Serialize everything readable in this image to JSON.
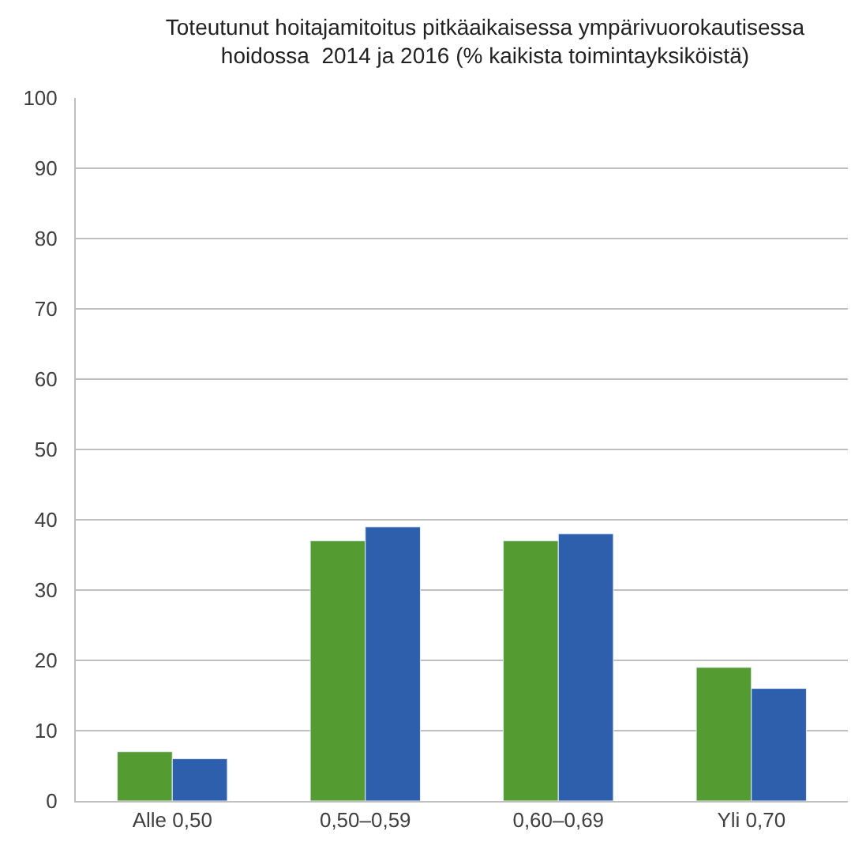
{
  "chart_data": {
    "type": "bar",
    "title": "Toteutunut hoitajamitoitus pitkäaikaisessa ympärivuorokautisessa\nhoidossa  2014 ja 2016 (% kaikista toimintayksiköistä)",
    "categories": [
      "Alle 0,50",
      "0,50–0,59",
      "0,60–0,69",
      "Yli 0,70"
    ],
    "series": [
      {
        "color": "#549b31",
        "values": [
          7,
          37,
          37,
          19
        ]
      },
      {
        "color": "#2e5fac",
        "values": [
          6,
          39,
          38,
          16
        ]
      }
    ],
    "ylim": [
      0,
      100
    ],
    "yticks": [
      0,
      10,
      20,
      30,
      40,
      50,
      60,
      70,
      80,
      90,
      100
    ],
    "grid": "y"
  }
}
